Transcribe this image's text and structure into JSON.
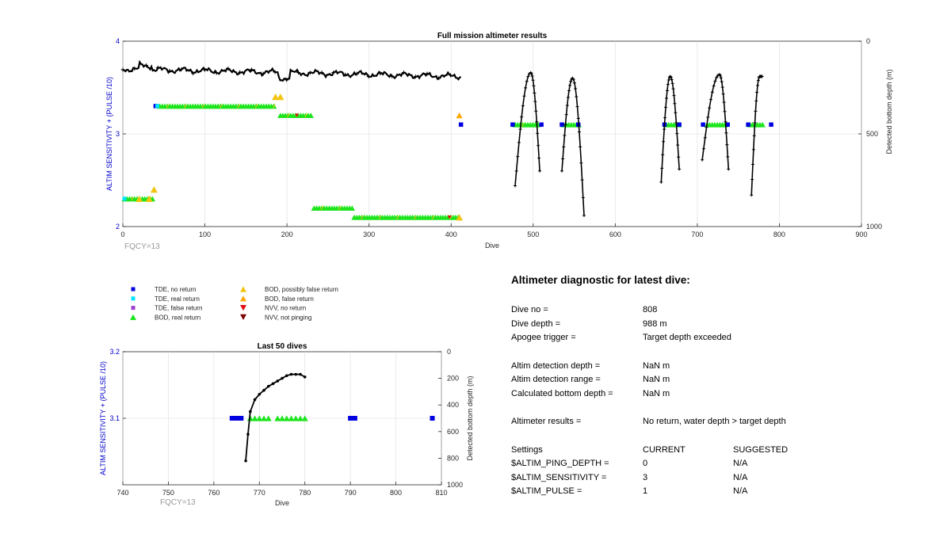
{
  "colors": {
    "tde_no": "#0000e0",
    "tde_real": "#00e5ff",
    "tde_false": "#a040d0",
    "bod_real": "#1de51d",
    "bod_possible": "#f2c40f",
    "bod_false": "#ffa500",
    "nvv_no": "#e01010",
    "nvv_notping": "#800000",
    "trace": "#000000",
    "grid": "#dcdcdc",
    "axis_left": "#0000cc",
    "fqcy": "#999999"
  },
  "chart_data": [
    {
      "type": "scatter",
      "title": "Full mission altimeter results",
      "xlabel": "Dive",
      "ylabel_left": "ALTIM SENSITIVITY + (PULSE /10)",
      "ylabel_right": "Detected bottom depth (m)",
      "xlim": [
        0,
        900
      ],
      "ylim_left": [
        2,
        4
      ],
      "ylim_right_reversed": [
        0,
        1000
      ],
      "xticks": [
        "0",
        "100",
        "200",
        "300",
        "400",
        "500",
        "600",
        "700",
        "800",
        "900"
      ],
      "yticks_left": [
        "2",
        "3",
        "4"
      ],
      "yticks_right": [
        "0",
        "500",
        "1000"
      ],
      "annotation": "FQCY=13",
      "tde_no_return": [
        [
          40,
          3.3
        ],
        [
          412,
          3.1
        ],
        [
          475,
          3.1
        ],
        [
          510,
          3.1
        ],
        [
          535,
          3.1
        ],
        [
          555,
          3.1
        ],
        [
          660,
          3.1
        ],
        [
          678,
          3.1
        ],
        [
          707,
          3.1
        ],
        [
          737,
          3.1
        ],
        [
          762,
          3.1
        ],
        [
          790,
          3.1
        ]
      ],
      "tde_real_return": [
        [
          42,
          3.3
        ],
        [
          2,
          2.3
        ]
      ],
      "bod_real_segments": [
        {
          "x0": 2,
          "x1": 38,
          "y": 2.3
        },
        {
          "x0": 45,
          "x1": 185,
          "y": 3.3
        },
        {
          "x0": 192,
          "x1": 232,
          "y": 3.2
        },
        {
          "x0": 233,
          "x1": 282,
          "y": 2.2
        },
        {
          "x0": 282,
          "x1": 410,
          "y": 2.1
        },
        {
          "x0": 478,
          "x1": 508,
          "y": 3.1
        },
        {
          "x0": 537,
          "x1": 557,
          "y": 3.1
        },
        {
          "x0": 662,
          "x1": 678,
          "y": 3.1
        },
        {
          "x0": 712,
          "x1": 735,
          "y": 3.1
        },
        {
          "x0": 764,
          "x1": 780,
          "y": 3.1
        }
      ],
      "bod_possible_false": [
        [
          20,
          2.3
        ],
        [
          32,
          2.3
        ],
        [
          38,
          2.4
        ],
        [
          186,
          3.4
        ],
        [
          192,
          3.4
        ],
        [
          410,
          2.1
        ]
      ],
      "bod_false": [
        [
          410,
          3.2
        ]
      ],
      "nvv_no_return": [
        [
          212,
          3.2
        ],
        [
          398,
          2.1
        ]
      ],
      "depth_flat": {
        "x0": 0,
        "x1": 412,
        "depth_start": 150,
        "depth_end": 190
      },
      "depth_arches": [
        {
          "x0": 478,
          "xpeak": 497,
          "x1": 508,
          "start": 780,
          "peak": 170,
          "end": 700
        },
        {
          "x0": 535,
          "xpeak": 548,
          "x1": 562,
          "start": 700,
          "peak": 200,
          "end": 940
        },
        {
          "x0": 656,
          "xpeak": 667,
          "x1": 678,
          "start": 760,
          "peak": 190,
          "end": 690
        },
        {
          "x0": 706,
          "xpeak": 727,
          "x1": 738,
          "start": 640,
          "peak": 180,
          "end": 690
        },
        {
          "x0": 766,
          "xpeak": 776,
          "x1": 779,
          "start": 830,
          "peak": 190,
          "end": 190
        }
      ]
    },
    {
      "type": "scatter",
      "title": "Last 50 dives",
      "xlabel": "Dive",
      "ylabel_left": "ALTIM SENSITIVITY + (PULSE /10)",
      "ylabel_right": "Detected bottom depth (m)",
      "xlim": [
        740,
        810
      ],
      "ylim_left": [
        3.0,
        3.2
      ],
      "ylim_right_reversed": [
        0,
        1000
      ],
      "xticks": [
        "740",
        "750",
        "760",
        "770",
        "780",
        "790",
        "800",
        "810"
      ],
      "yticks_left": [
        "3.1",
        "3.2"
      ],
      "yticks_right": [
        "0",
        "200",
        "400",
        "600",
        "800",
        "1000"
      ],
      "annotation": "FQCY=13",
      "tde_no_return_x": [
        764,
        765,
        766,
        790,
        791,
        808
      ],
      "bod_real_x": [
        768,
        769,
        770,
        771,
        772,
        774,
        775,
        776,
        777,
        778,
        779,
        780
      ],
      "depth_x": [
        767,
        767.5,
        768,
        769,
        770,
        771,
        772,
        773,
        774,
        775,
        776,
        777,
        778,
        779,
        780
      ],
      "depth_y": [
        820,
        620,
        450,
        360,
        320,
        290,
        260,
        240,
        220,
        200,
        180,
        170,
        170,
        170,
        190
      ]
    }
  ],
  "legend": [
    {
      "symbol": "square",
      "color_key": "tde_no",
      "label": "TDE, no return"
    },
    {
      "symbol": "square",
      "color_key": "tde_real",
      "label": "TDE, real return"
    },
    {
      "symbol": "square",
      "color_key": "tde_false",
      "label": "TDE, false return"
    },
    {
      "symbol": "triangle-up",
      "color_key": "bod_real",
      "label": "BOD, real return"
    },
    {
      "symbol": "triangle-up",
      "color_key": "bod_possible",
      "label": "BOD, possibly false return"
    },
    {
      "symbol": "triangle-up",
      "color_key": "bod_false",
      "label": "BOD, false return"
    },
    {
      "symbol": "triangle-down",
      "color_key": "nvv_no",
      "label": "NVV, no return"
    },
    {
      "symbol": "triangle-down",
      "color_key": "nvv_notping",
      "label": "NVV, not pinging"
    }
  ],
  "diagnostic": {
    "title": "Altimeter diagnostic for latest dive:",
    "dive_no_label": "Dive no =",
    "dive_no": "808",
    "dive_depth_label": "Dive depth =",
    "dive_depth": "988 m",
    "apogee_label": "Apogee trigger =",
    "apogee": "Target depth exceeded",
    "detect_depth_label": "Altim detection depth =",
    "detect_depth": "NaN m",
    "detect_range_label": "Altim detection range =",
    "detect_range": "NaN m",
    "calc_bottom_label": "Calculated bottom depth =",
    "calc_bottom": "NaN m",
    "results_label": "Altimeter results =",
    "results": "No return, water depth > target depth",
    "settings_label": "Settings",
    "current_label": "CURRENT",
    "suggested_label": "SUGGESTED",
    "settings": [
      {
        "name": "$ALTIM_PING_DEPTH =",
        "current": "0",
        "suggested": "N/A"
      },
      {
        "name": "$ALTIM_SENSITIVITY =",
        "current": "3",
        "suggested": "N/A"
      },
      {
        "name": "$ALTIM_PULSE =",
        "current": "1",
        "suggested": "N/A"
      }
    ]
  }
}
